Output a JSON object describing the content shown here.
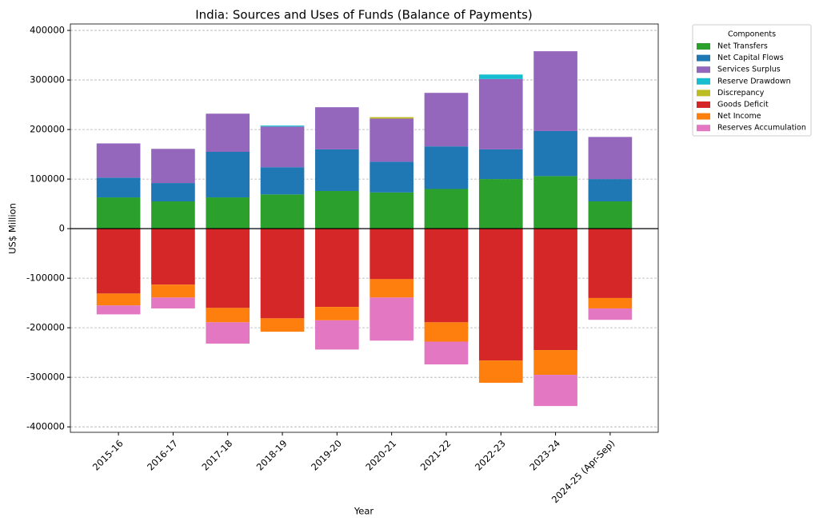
{
  "chart_data": {
    "type": "stacked_bar",
    "title": "India: Sources and Uses of Funds (Balance of Payments)",
    "x_label": "Year",
    "y_label": "US$ Million",
    "legend_title": "Components",
    "legend": "outside upper right",
    "grid": true,
    "categories": [
      "2015-16",
      "2016-17",
      "2017-18",
      "2018-19",
      "2019-20",
      "2020-21",
      "2021-22",
      "2022-23",
      "2023-24",
      "2024-25 (Apr-Sep)"
    ],
    "ylim": [
      -411000,
      413000
    ],
    "yticks": [
      -400000,
      -300000,
      -200000,
      -100000,
      0,
      100000,
      200000,
      300000,
      400000
    ],
    "series": [
      {
        "name": "Net Transfers",
        "color": "#2ca02c",
        "values": [
          63000,
          55000,
          63000,
          69000,
          76000,
          73000,
          80000,
          100000,
          106000,
          55000
        ]
      },
      {
        "name": "Net Capital Flows",
        "color": "#1f77b4",
        "values": [
          40000,
          37000,
          92000,
          55000,
          84000,
          62000,
          86000,
          60000,
          91000,
          45000
        ]
      },
      {
        "name": "Services Surplus",
        "color": "#9467bd",
        "values": [
          69000,
          69000,
          77000,
          82000,
          85000,
          87000,
          108000,
          142000,
          161000,
          85000
        ]
      },
      {
        "name": "Reserve Drawdown",
        "color": "#17becf",
        "values": [
          null,
          null,
          null,
          2000,
          null,
          null,
          null,
          9000,
          null,
          null
        ]
      },
      {
        "name": "Discrepancy",
        "color": "#bcbd22",
        "values": [
          null,
          null,
          null,
          null,
          null,
          3000,
          null,
          null,
          null,
          null
        ]
      },
      {
        "name": "Goods Deficit",
        "color": "#d62728",
        "values": [
          -131000,
          -113000,
          -160000,
          -181000,
          -158000,
          -102000,
          -189000,
          -266000,
          -245000,
          -140000
        ]
      },
      {
        "name": "Net Income",
        "color": "#ff7f0e",
        "values": [
          -24000,
          -26000,
          -29000,
          -27000,
          -27000,
          -37000,
          -39000,
          -45000,
          -50000,
          -21000
        ]
      },
      {
        "name": "Reserves Accumulation",
        "color": "#e377c2",
        "values": [
          -18000,
          -22000,
          -43000,
          null,
          -59000,
          -87000,
          -46000,
          null,
          -63000,
          -23000
        ]
      }
    ]
  }
}
